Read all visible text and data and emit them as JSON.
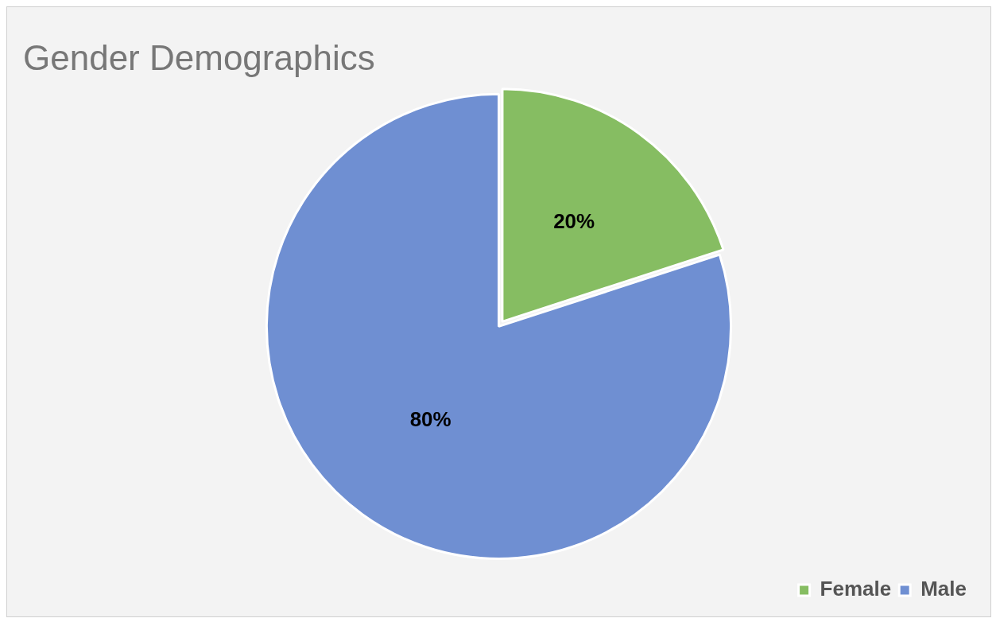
{
  "chart_data": {
    "type": "pie",
    "title": "Gender Demographics",
    "categories": [
      "Female",
      "Male"
    ],
    "values": [
      20,
      80
    ],
    "colors": [
      "#86bd62",
      "#6f8fd2"
    ],
    "value_labels": [
      "20%",
      "80%"
    ],
    "legend": "bottom right"
  }
}
